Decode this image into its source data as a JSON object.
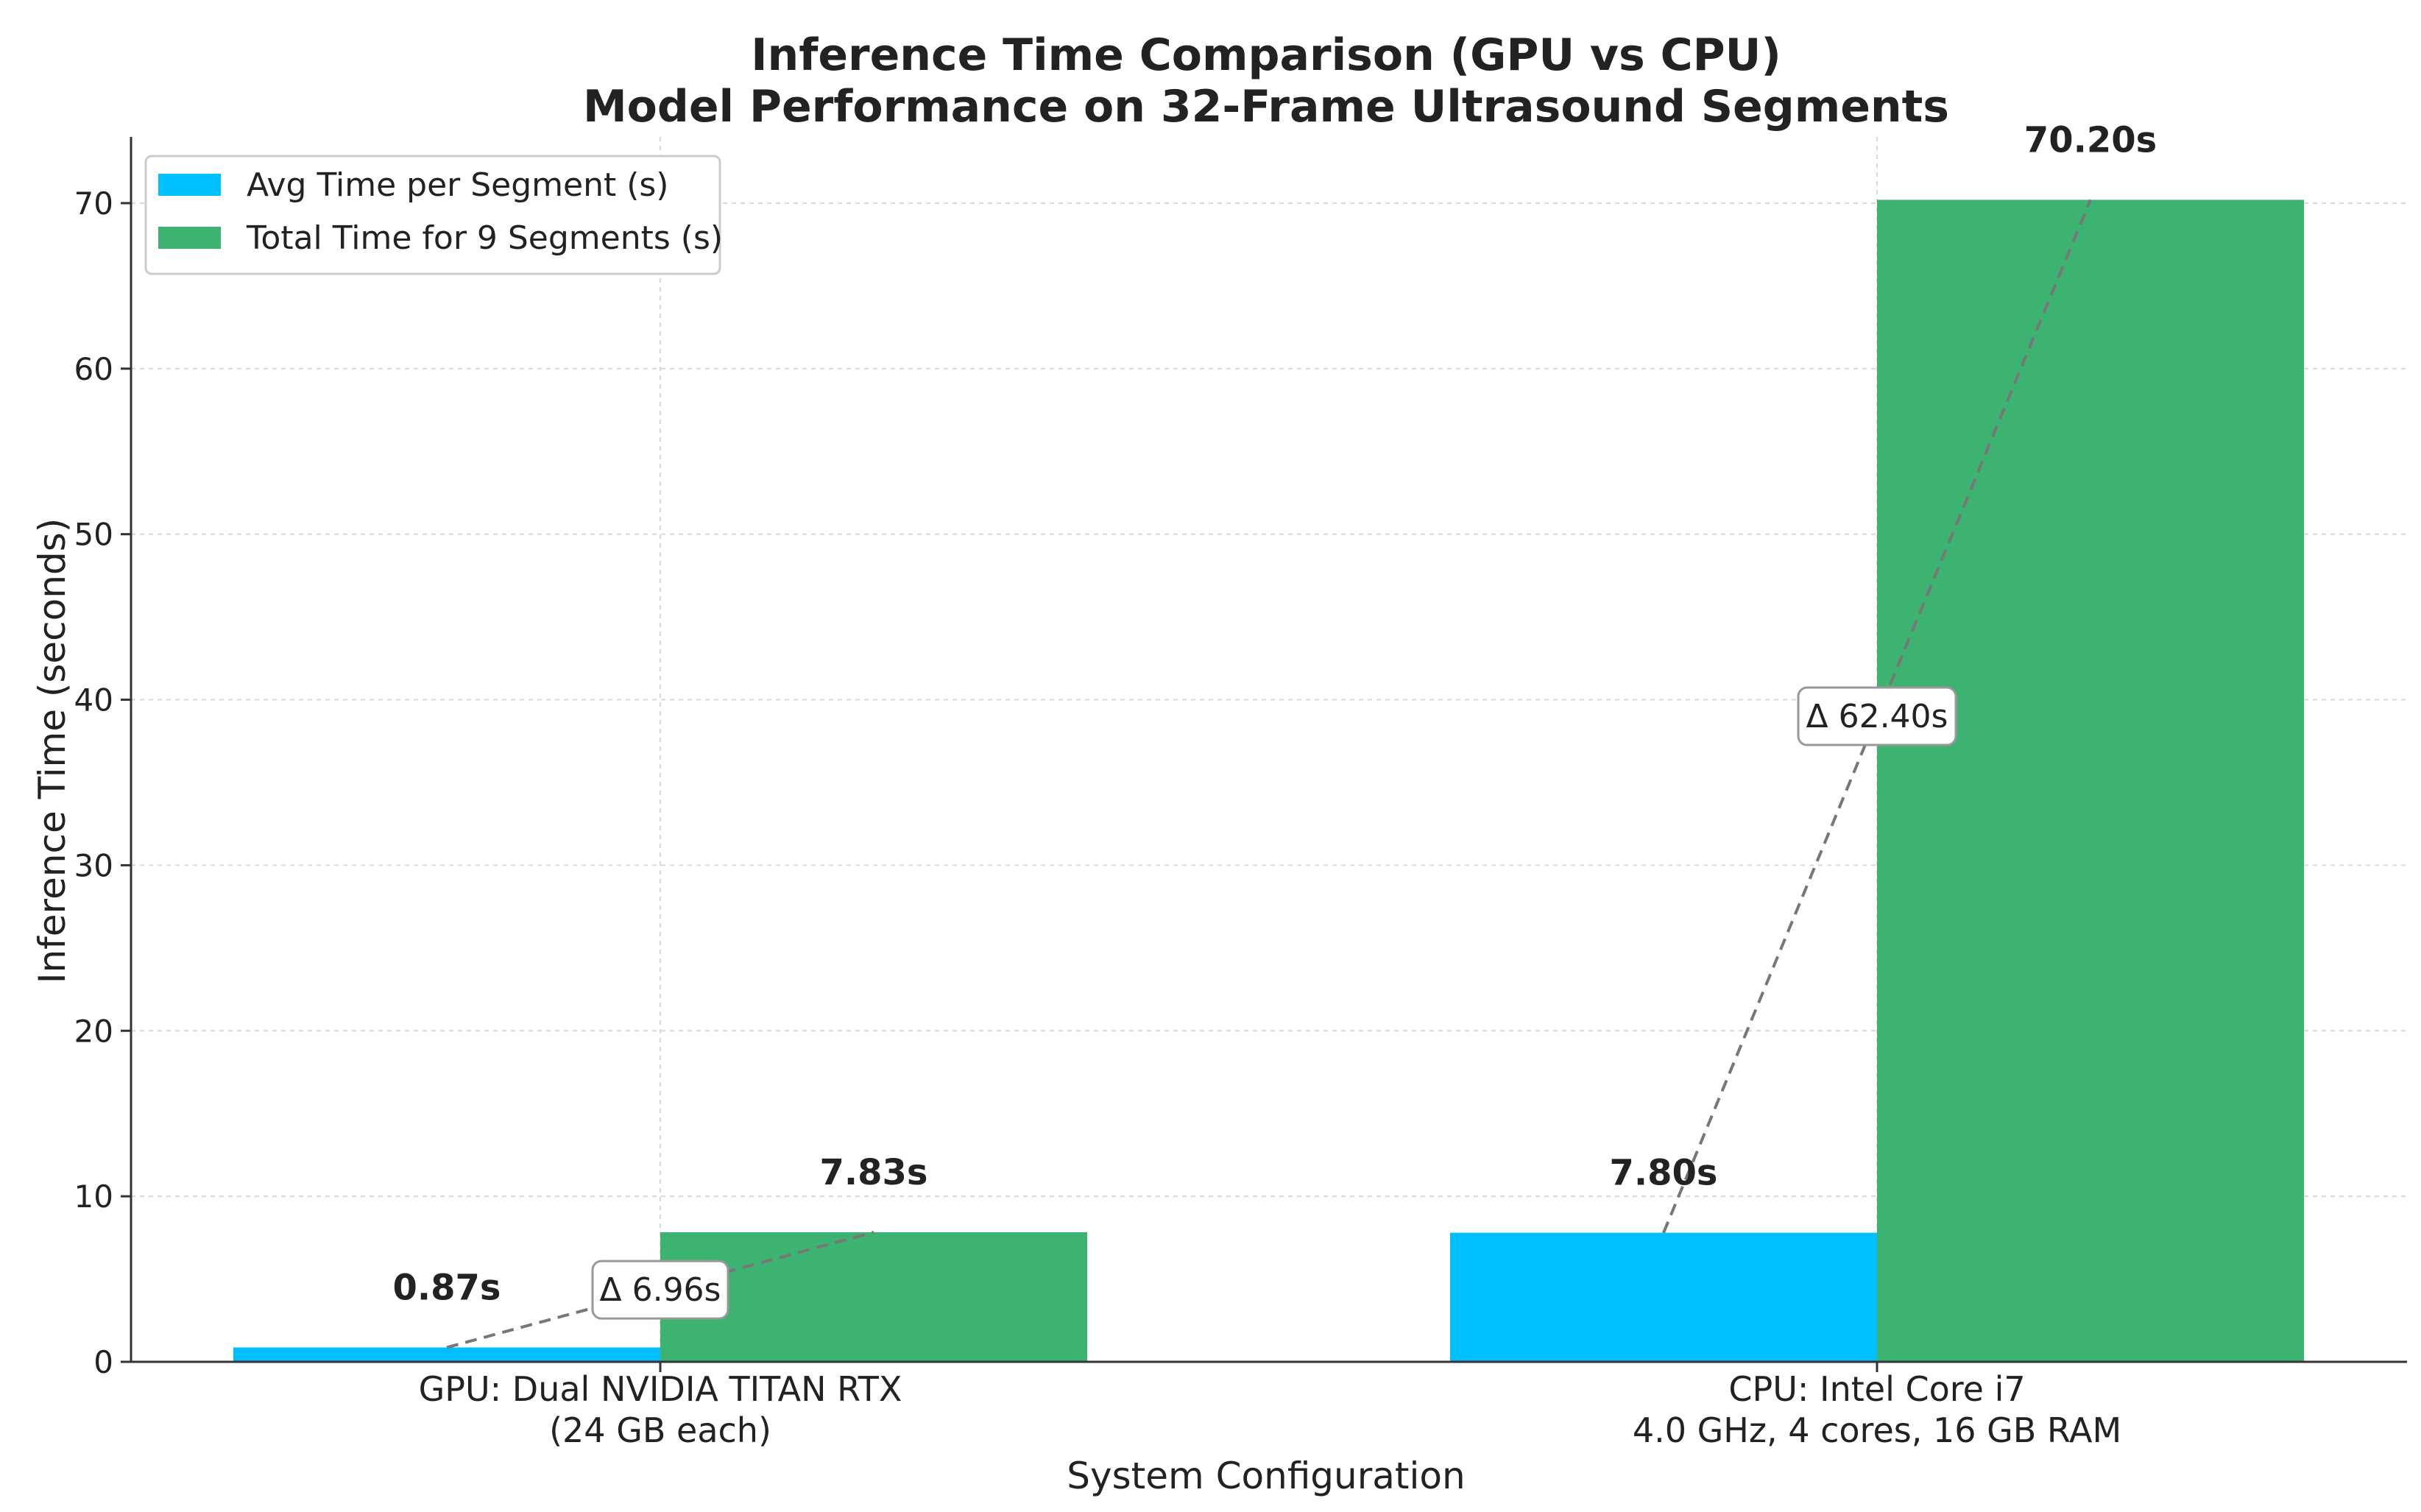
{
  "chart_data": {
    "type": "bar",
    "title": "Inference Time Comparison (GPU vs CPU)",
    "subtitle": "Model Performance on 32-Frame Ultrasound Segments",
    "xlabel": "System Configuration",
    "ylabel": "Inference Time (seconds)",
    "ylim": [
      0,
      74
    ],
    "yticks": [
      0,
      10,
      20,
      30,
      40,
      50,
      60,
      70
    ],
    "grid": true,
    "legend_position": "top-left",
    "categories": [
      [
        "GPU: Dual NVIDIA TITAN RTX",
        "(24 GB each)"
      ],
      [
        "CPU: Intel Core i7",
        "4.0 GHz, 4 cores, 16 GB RAM"
      ]
    ],
    "series": [
      {
        "name": "Avg Time per Segment (s)",
        "color": "#00BFFF",
        "values": [
          0.87,
          7.8
        ],
        "labels": [
          "0.87s",
          "7.80s"
        ]
      },
      {
        "name": "Total Time for 9 Segments (s)",
        "color": "#3CB371",
        "values": [
          7.83,
          70.2
        ],
        "labels": [
          "7.83s",
          "70.20s"
        ]
      }
    ],
    "annotations": [
      {
        "category": 0,
        "text": "Δ 6.96s",
        "value": 6.96
      },
      {
        "category": 1,
        "text": "Δ 62.40s",
        "value": 62.4
      }
    ]
  }
}
